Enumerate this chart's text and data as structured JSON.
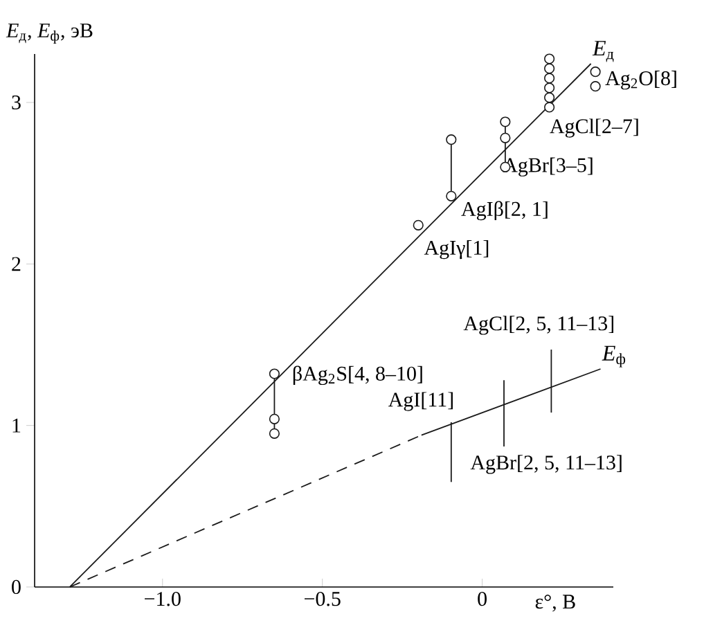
{
  "chart_data": {
    "type": "line",
    "xlabel": "ε°, В",
    "ylabel": "*E*$_{д}$, *E*$_{ф}$, эВ",
    "xlim": [
      -1.4,
      0.41
    ],
    "ylim": [
      0,
      3.3
    ],
    "xticks": [
      {
        "value": -1.0,
        "label": "−1.0"
      },
      {
        "value": -0.5,
        "label": "−0.5"
      },
      0
    ],
    "yticks": [
      0,
      1,
      2,
      3
    ],
    "grid": false,
    "series": [
      {
        "name": "*E*$_{д}$",
        "color": "#1a1a1a",
        "x": [
          -1.29,
          0.34
        ],
        "values": [
          0,
          3.24
        ],
        "marker": "none",
        "line_style": "solid"
      },
      {
        "color": "#1a1a1a",
        "x": [
          -1.29,
          -0.19
        ],
        "values": [
          0,
          0.94
        ],
        "marker": "none",
        "line_style": "dashed"
      },
      {
        "name": "*E*$_{ф}$",
        "color": "#1a1a1a",
        "x": [
          -0.19,
          0.37
        ],
        "values": [
          0.94,
          1.35
        ],
        "marker": "none",
        "line_style": "solid"
      },
      {
        "color": "#1a1a1a",
        "x": [
          -0.65,
          -0.65,
          -0.65
        ],
        "values": [
          1.32,
          1.04,
          0.95
        ],
        "marker": "circle",
        "line_style": "solid"
      },
      {
        "color": "#1a1a1a",
        "x": [
          -0.2
        ],
        "values": [
          2.24
        ],
        "marker": "circle",
        "line_style": "solid"
      },
      {
        "color": "#1a1a1a",
        "x": [
          -0.097,
          -0.097
        ],
        "values": [
          2.42,
          2.77
        ],
        "marker": "circle",
        "line_style": "solid"
      },
      {
        "color": "#1a1a1a",
        "x": [
          0.072,
          0.072,
          0.072
        ],
        "values": [
          2.6,
          2.78,
          2.88
        ],
        "marker": "circle",
        "line_style": "solid"
      },
      {
        "type": "scatter",
        "color": "#1a1a1a",
        "x": [
          0.21,
          0.21,
          0.21,
          0.21,
          0.21,
          0.21
        ],
        "values": [
          2.97,
          3.03,
          3.09,
          3.15,
          3.21,
          3.27
        ],
        "marker": "circle"
      },
      {
        "type": "scatter",
        "color": "#1a1a1a",
        "x": [
          0.354,
          0.354
        ],
        "values": [
          3.1,
          3.19
        ],
        "marker": "circle"
      },
      {
        "color": "#1a1a1a",
        "x": [
          -0.097,
          -0.097
        ],
        "values": [
          0.65,
          1.02
        ],
        "marker": "none",
        "line_style": "solid"
      },
      {
        "color": "#1a1a1a",
        "x": [
          0.068,
          0.068
        ],
        "values": [
          0.87,
          1.28
        ],
        "marker": "none",
        "line_style": "solid"
      },
      {
        "color": "#1a1a1a",
        "x": [
          0.216,
          0.216
        ],
        "values": [
          1.08,
          1.47
        ],
        "marker": "none",
        "line_style": "solid"
      }
    ],
    "annotations": [
      "Ag$_{2}$O[8]",
      "AgCl[2–7]",
      "AgBr[3–5]",
      "AgIβ[2, 1]",
      "AgIγ[1]",
      "βAg$_{2}$S[4, 8–10]",
      "AgI[11]",
      "AgCl[2, 5, 11–13]",
      "AgBr[2, 5, 11–13]"
    ]
  }
}
